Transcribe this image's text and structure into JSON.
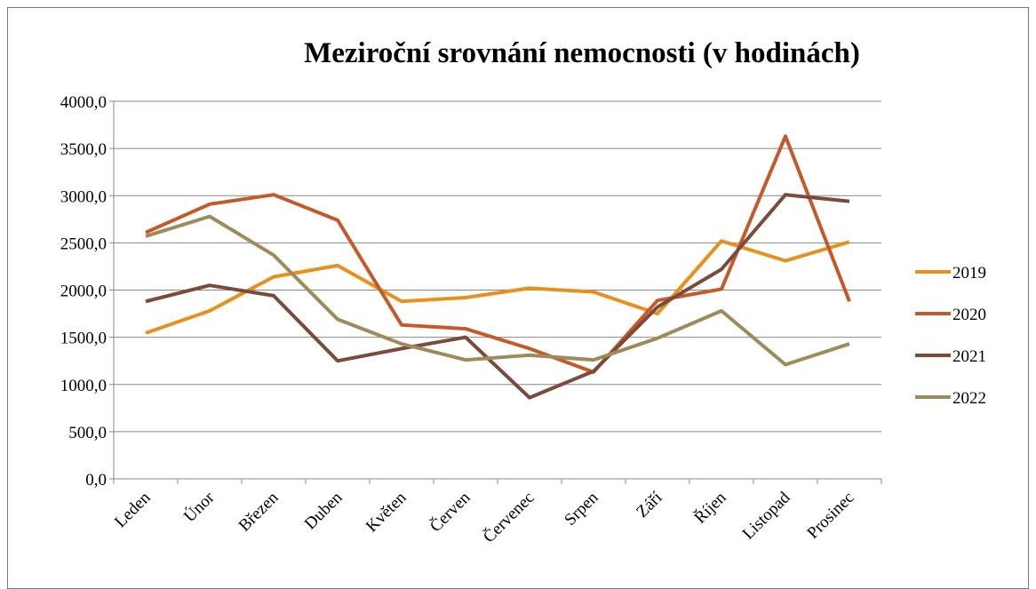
{
  "chart_data": {
    "type": "line",
    "title": "Meziroční srovnání nemocnosti (v hodinách)",
    "categories": [
      "Leden",
      "Únor",
      "Březen",
      "Duben",
      "Květen",
      "Červen",
      "Červenec",
      "Srpen",
      "Září",
      "Říjen",
      "Listopad",
      "Prosinec"
    ],
    "series": [
      {
        "name": "2019",
        "color": "#e8901c",
        "values": [
          1545,
          1780,
          2140,
          2260,
          1880,
          1920,
          2020,
          1980,
          1750,
          2520,
          2310,
          2510
        ]
      },
      {
        "name": "2020",
        "color": "#c55a28",
        "values": [
          2610,
          2910,
          3010,
          2740,
          1630,
          1590,
          1380,
          1130,
          1890,
          2010,
          3630,
          1880
        ]
      },
      {
        "name": "2021",
        "color": "#7b4a3a",
        "values": [
          1880,
          2050,
          1940,
          1250,
          1380,
          1500,
          860,
          1140,
          1820,
          2220,
          3010,
          2940
        ]
      },
      {
        "name": "2022",
        "color": "#9e8a5a",
        "values": [
          2570,
          2780,
          2370,
          1690,
          1430,
          1260,
          1310,
          1260,
          1490,
          1780,
          1210,
          1430
        ]
      }
    ],
    "ylim": [
      0,
      4000
    ],
    "yticks": [
      {
        "value": 0,
        "label": "0,0"
      },
      {
        "value": 500,
        "label": "500,0"
      },
      {
        "value": 1000,
        "label": "1000,0"
      },
      {
        "value": 1500,
        "label": "1500,0"
      },
      {
        "value": 2000,
        "label": "2000,0"
      },
      {
        "value": 2500,
        "label": "2500,0"
      },
      {
        "value": 3000,
        "label": "3000,0"
      },
      {
        "value": 3500,
        "label": "3500,0"
      },
      {
        "value": 4000,
        "label": "4000,0"
      }
    ],
    "grid": true,
    "legend": "right"
  }
}
